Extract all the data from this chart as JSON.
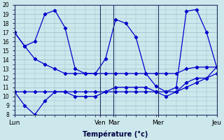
{
  "xlabel": "Température (°c)",
  "ylim": [
    8,
    20
  ],
  "yticks": [
    8,
    9,
    10,
    11,
    12,
    13,
    14,
    15,
    16,
    17,
    18,
    19,
    20
  ],
  "background_color": "#cce8ec",
  "line_color": "#0000cc",
  "grid_color": "#99bbcc",
  "series_main": [
    17.0,
    15.5,
    16.0,
    19.0,
    19.4,
    17.5,
    13.0,
    12.5,
    12.5,
    14.1,
    18.4,
    18.0,
    16.5,
    12.5,
    11.1,
    10.5,
    11.0,
    19.3,
    19.5,
    17.0,
    13.2
  ],
  "series_trend1": [
    17.0,
    15.5,
    14.1,
    13.5,
    13.0,
    12.5,
    12.5,
    12.5,
    12.5,
    12.5,
    12.5,
    12.5,
    12.5,
    12.5,
    12.5,
    12.5,
    12.5,
    13.0,
    13.2,
    13.2,
    13.2
  ],
  "series_flat1": [
    10.5,
    10.5,
    10.5,
    10.5,
    10.5,
    10.5,
    10.5,
    10.5,
    10.5,
    10.5,
    10.5,
    10.5,
    10.5,
    10.5,
    10.5,
    10.5,
    10.5,
    11.0,
    11.5,
    12.0,
    12.5
  ],
  "series_low": [
    10.5,
    9.0,
    8.0,
    9.5,
    10.5,
    10.5,
    10.0,
    10.0,
    10.0,
    10.5,
    11.0,
    11.0,
    11.0,
    11.0,
    10.5,
    10.0,
    10.5,
    11.5,
    12.0,
    12.0,
    13.2
  ],
  "x_tick_labels_day": [
    "Lun",
    "Ven",
    "Mar",
    "Mer",
    "Jeu"
  ],
  "n_points": 21
}
